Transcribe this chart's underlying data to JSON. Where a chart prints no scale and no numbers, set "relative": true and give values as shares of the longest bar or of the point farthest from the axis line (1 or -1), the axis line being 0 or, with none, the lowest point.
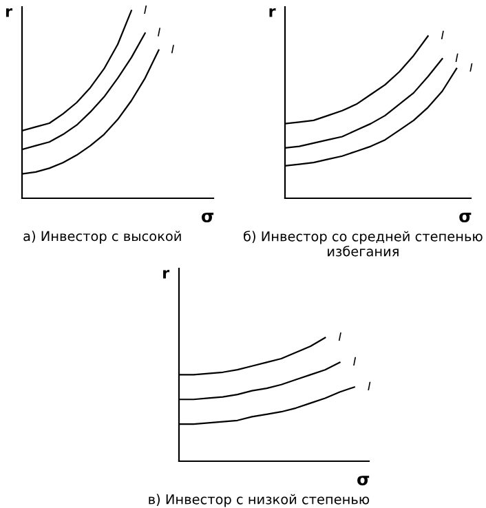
{
  "chart_data": [
    {
      "type": "line",
      "relative": true,
      "title": "а) Инвестор с высокой",
      "xlabel": "σ",
      "ylabel": "r",
      "tick_labels": false,
      "legend": false,
      "categories": [
        null,
        null,
        null,
        null,
        null,
        null,
        null,
        null,
        null,
        null,
        null,
        null,
        null,
        null,
        null
      ],
      "series": [
        {
          "name": "I",
          "color": "#000000",
          "values": [
            0.36,
            0.38,
            0.4,
            0.45,
            0.51,
            0.59,
            0.69,
            0.82,
            1.0,
            null,
            null,
            null,
            null,
            null,
            null
          ]
        },
        {
          "name": "I",
          "color": "#000000",
          "values": [
            0.26,
            0.28,
            0.3,
            0.34,
            0.39,
            0.46,
            0.54,
            0.64,
            0.75,
            0.88,
            null,
            null,
            null,
            null,
            null
          ]
        },
        {
          "name": "I",
          "color": "#000000",
          "values": [
            0.13,
            0.14,
            0.16,
            0.19,
            0.23,
            0.28,
            0.34,
            0.42,
            0.52,
            0.64,
            0.79,
            null,
            null,
            null,
            null
          ]
        }
      ]
    },
    {
      "type": "line",
      "relative": true,
      "title": "б) Инвестор со средней степенью избегания",
      "xlabel": "σ",
      "ylabel": "r",
      "tick_labels": false,
      "legend": false,
      "categories": [
        null,
        null,
        null,
        null,
        null,
        null,
        null,
        null,
        null,
        null,
        null,
        null,
        null,
        null
      ],
      "series": [
        {
          "name": "I",
          "color": "#000000",
          "values": [
            0.46,
            0.47,
            0.48,
            0.51,
            0.54,
            0.58,
            0.64,
            0.7,
            0.78,
            0.88,
            1.0,
            null,
            null,
            null
          ]
        },
        {
          "name": "I",
          "color": "#000000",
          "values": [
            0.31,
            0.32,
            0.34,
            0.36,
            0.38,
            0.42,
            0.46,
            0.51,
            0.58,
            0.65,
            0.75,
            0.86,
            null,
            null
          ]
        },
        {
          "name": "I",
          "color": "#000000",
          "values": [
            0.2,
            0.21,
            0.22,
            0.24,
            0.26,
            0.29,
            0.32,
            0.36,
            0.42,
            0.48,
            0.56,
            0.66,
            0.8,
            null
          ]
        }
      ]
    },
    {
      "type": "line",
      "relative": true,
      "title": "в) Инвестор с низкой степенью",
      "xlabel": "σ",
      "ylabel": "r",
      "tick_labels": false,
      "legend": false,
      "categories": [
        null,
        null,
        null,
        null,
        null,
        null,
        null,
        null,
        null,
        null,
        null,
        null,
        null,
        null
      ],
      "series": [
        {
          "name": "I",
          "color": "#000000",
          "values": [
            0.7,
            0.7,
            0.71,
            0.72,
            0.74,
            0.77,
            0.8,
            0.83,
            0.88,
            0.93,
            1.0,
            null,
            null,
            null
          ]
        },
        {
          "name": "I",
          "color": "#000000",
          "values": [
            0.5,
            0.5,
            0.51,
            0.52,
            0.54,
            0.57,
            0.59,
            0.62,
            0.66,
            0.7,
            0.74,
            0.8,
            null,
            null
          ]
        },
        {
          "name": "I",
          "color": "#000000",
          "values": [
            0.3,
            0.3,
            0.31,
            0.32,
            0.33,
            0.36,
            0.38,
            0.4,
            0.43,
            0.47,
            0.51,
            0.56,
            0.6,
            null
          ]
        }
      ]
    }
  ]
}
